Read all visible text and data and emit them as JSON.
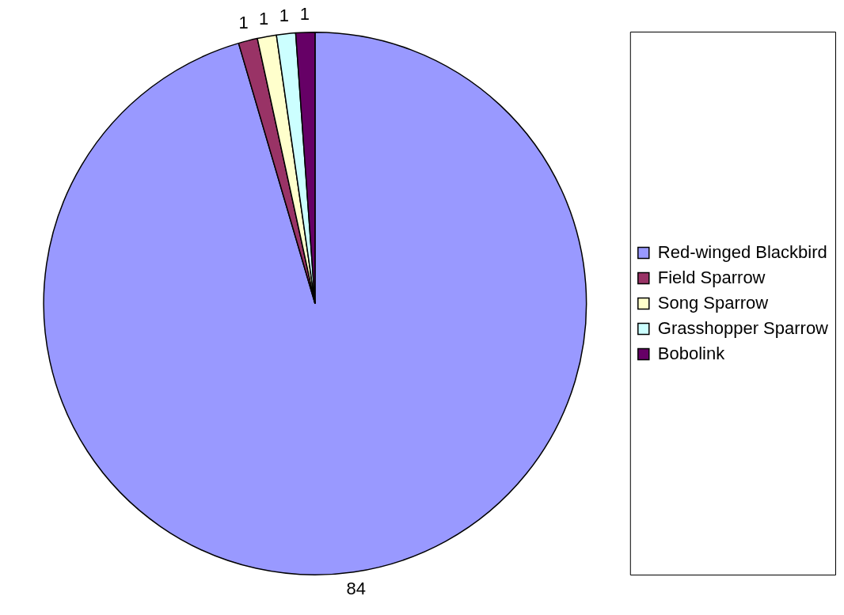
{
  "chart_data": {
    "type": "pie",
    "categories": [
      "Red-winged Blackbird",
      "Field Sparrow",
      "Song Sparrow",
      "Grasshopper Sparrow",
      "Bobolink"
    ],
    "values": [
      84,
      1,
      1,
      1,
      1
    ],
    "colors": [
      "#9999ff",
      "#993366",
      "#ffffcc",
      "#ccffff",
      "#660066"
    ],
    "data_labels": true,
    "legend": "right"
  }
}
